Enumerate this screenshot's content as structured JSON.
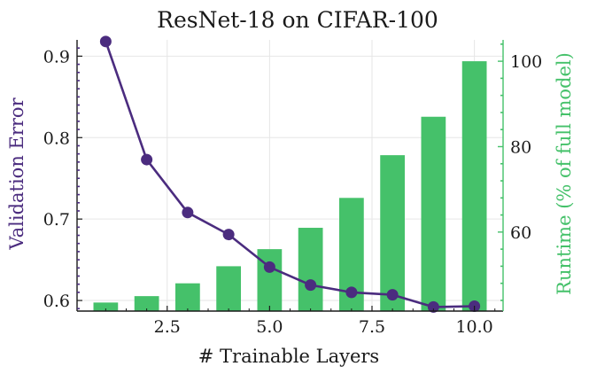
{
  "chart_data": {
    "type": "bar+line",
    "title": "ResNet-18 on CIFAR-100",
    "xlabel": "# Trainable Layers",
    "ylabel_left": "Validation Error",
    "ylabel_right": "Runtime (% of full model)",
    "xlim": [
      0.3,
      10.7
    ],
    "ylim_left": [
      0.587,
      0.92
    ],
    "ylim_right": [
      41.5,
      105
    ],
    "x_ticks": [
      2.5,
      5.0,
      7.5,
      10.0
    ],
    "x_tick_labels": [
      "2.5",
      "5.0",
      "7.5",
      "10.0"
    ],
    "y_left_ticks": [
      0.6,
      0.7,
      0.8,
      0.9
    ],
    "y_left_tick_labels": [
      "0.6",
      "0.7",
      "0.8",
      "0.9"
    ],
    "y_right_ticks": [
      60,
      80,
      100
    ],
    "y_right_tick_labels": [
      "60",
      "80",
      "100"
    ],
    "grid": true,
    "series": [
      {
        "name": "Validation Error",
        "kind": "line",
        "axis": "left",
        "color": "#4b2c7f",
        "x": [
          1,
          2,
          3,
          4,
          5,
          6,
          7,
          8,
          9,
          10
        ],
        "values": [
          0.918,
          0.773,
          0.708,
          0.681,
          0.641,
          0.619,
          0.61,
          0.607,
          0.592,
          0.593
        ]
      },
      {
        "name": "Runtime (% of full model)",
        "kind": "bar",
        "axis": "right",
        "color": "#45c16a",
        "x": [
          1,
          2,
          3,
          4,
          5,
          6,
          7,
          8,
          9,
          10
        ],
        "values": [
          43.5,
          45,
          48,
          52,
          56,
          61,
          68,
          78,
          87,
          100
        ]
      }
    ]
  }
}
